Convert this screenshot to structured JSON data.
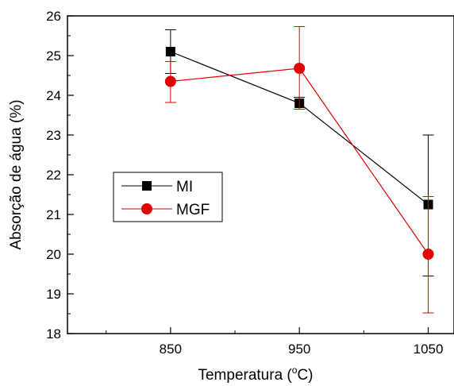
{
  "chart_data": {
    "type": "line",
    "xlabel": "Temperatura (",
    "xlabel_sup": "o",
    "xlabel_suffix": "C)",
    "ylabel": "Absorção de água (%)",
    "x": [
      850,
      950,
      1050
    ],
    "xticks": [
      "850",
      "950",
      "1050"
    ],
    "yticks": [
      "18",
      "19",
      "20",
      "21",
      "22",
      "23",
      "24",
      "25",
      "26"
    ],
    "xlim": [
      770,
      1070
    ],
    "ylim": [
      18,
      26
    ],
    "legend_position": "center-left",
    "series": [
      {
        "name": "MI",
        "color": "#000000",
        "marker": "square",
        "values": [
          25.1,
          23.8,
          21.25
        ],
        "err_low": [
          24.55,
          23.65,
          19.45
        ],
        "err_high": [
          25.65,
          23.95,
          23.0
        ]
      },
      {
        "name": "MGF",
        "color": "#e00000",
        "marker": "circle",
        "values": [
          24.35,
          24.68,
          20.0
        ],
        "err_low": [
          23.82,
          23.65,
          18.52
        ],
        "err_high": [
          24.85,
          25.73,
          21.45
        ]
      }
    ]
  }
}
